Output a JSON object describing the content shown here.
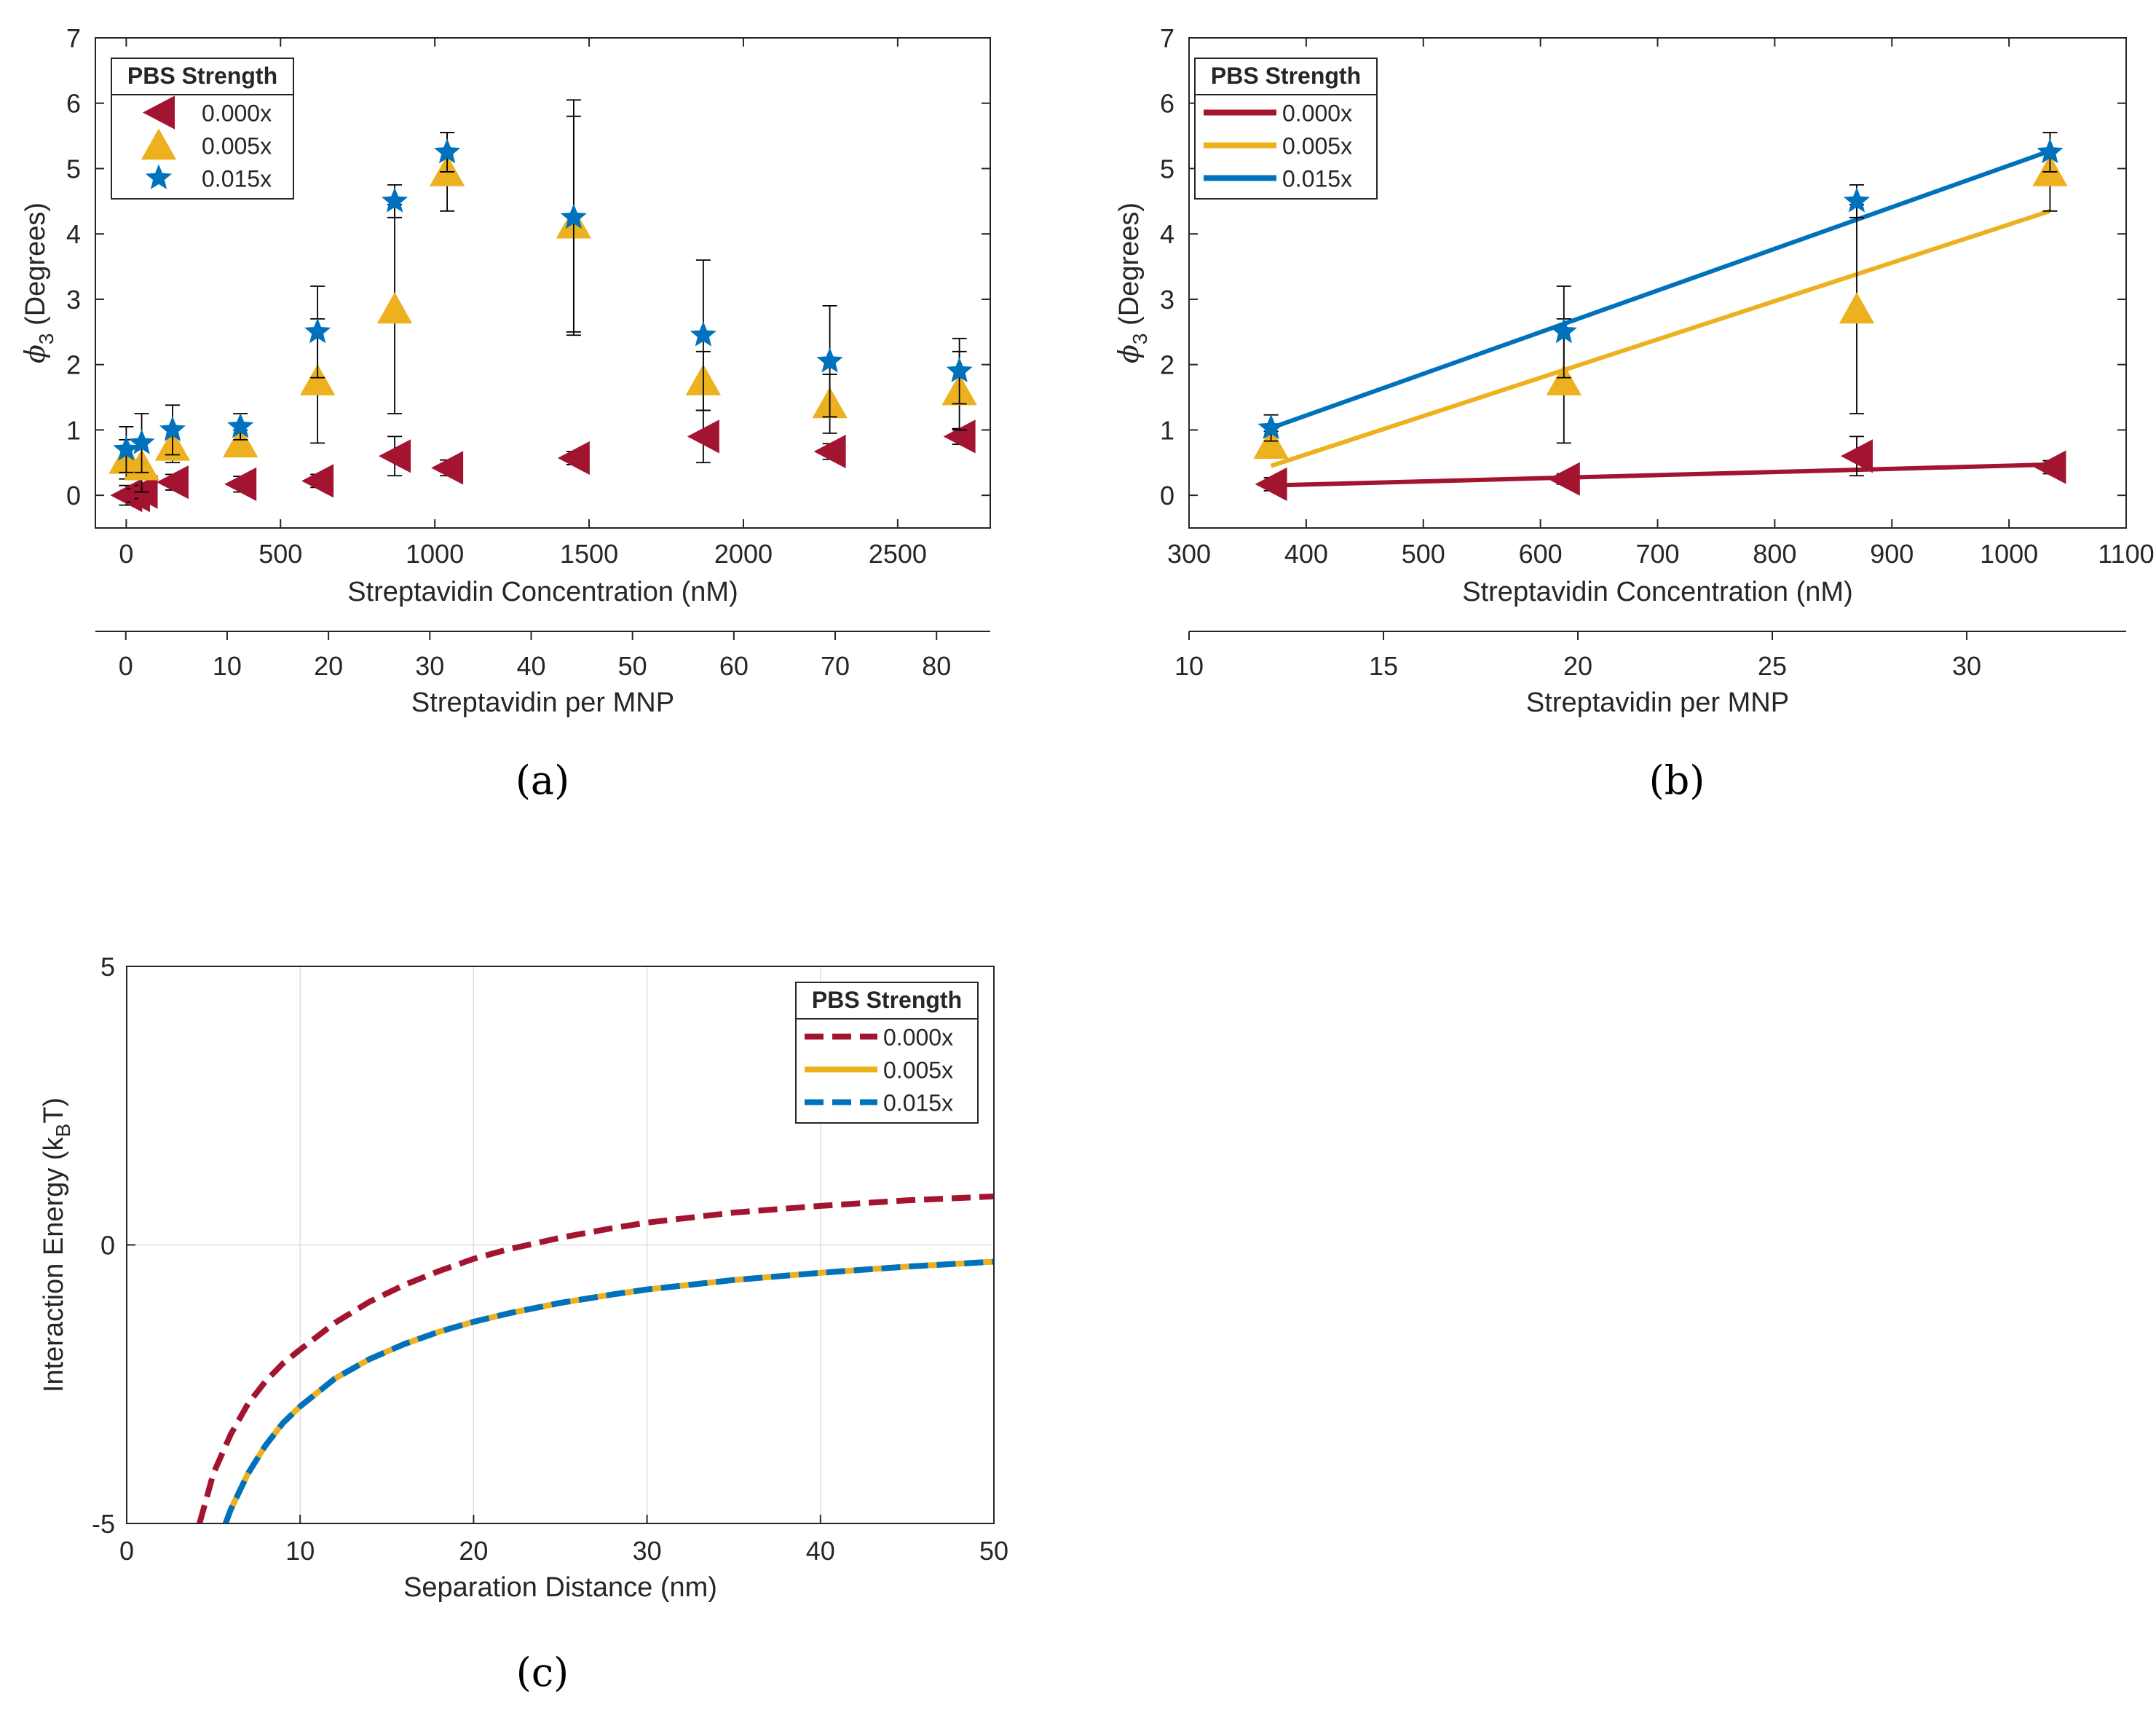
{
  "colors": {
    "red": "#A2142F",
    "yellow": "#EDB120",
    "blue": "#0072BD",
    "axis": "#262626",
    "grid": "#DFDFDF",
    "errorbar": "#000000"
  },
  "legend": {
    "title": "PBS Strength",
    "entries": [
      "0.000x",
      "0.005x",
      "0.015x"
    ]
  },
  "chart_data": [
    {
      "id": "a",
      "type": "scatter",
      "panel_label": "(a)",
      "ylabel": "ϕ₃ (Degrees)",
      "xlabel": "Streptavidin Concentration (nM)",
      "x2label": "Streptavidin per MNP",
      "xlim": [
        -100,
        2800
      ],
      "ylim": [
        -0.5,
        7
      ],
      "x2lim": [
        -3,
        85.3
      ],
      "xticks": [
        0,
        500,
        1000,
        1500,
        2000,
        2500
      ],
      "x2ticks": [
        0,
        10,
        20,
        30,
        40,
        50,
        60,
        70,
        80
      ],
      "yticks": [
        0,
        1,
        2,
        3,
        4,
        5,
        6,
        7
      ],
      "series": [
        {
          "name": "0.000x",
          "marker": "triangle-left",
          "color": "#A2142F",
          "x": [
            0,
            25,
            50,
            150,
            370,
            620,
            870,
            1040,
            1450,
            1870,
            2280,
            2700
          ],
          "y": [
            0.0,
            0.0,
            0.05,
            0.2,
            0.17,
            0.22,
            0.6,
            0.42,
            0.57,
            0.9,
            0.67,
            0.9
          ],
          "err": [
            0.15,
            0.1,
            0.1,
            0.12,
            0.12,
            0.1,
            0.3,
            0.12,
            0.1,
            0.4,
            0.12,
            0.12
          ]
        },
        {
          "name": "0.005x",
          "marker": "triangle-up",
          "color": "#EDB120",
          "x": [
            0,
            50,
            150,
            370,
            620,
            870,
            1040,
            1450,
            1870,
            2280,
            2700
          ],
          "y": [
            0.55,
            0.45,
            0.75,
            0.8,
            1.75,
            2.85,
            4.95,
            4.15,
            1.75,
            1.4,
            1.6
          ],
          "err": [
            0.3,
            0.4,
            0.25,
            0.2,
            0.95,
            1.6,
            0.6,
            1.65,
            0.45,
            0.45,
            0.6
          ]
        },
        {
          "name": "0.015x",
          "marker": "star",
          "color": "#0072BD",
          "x": [
            0,
            50,
            150,
            370,
            620,
            870,
            1040,
            1450,
            1870,
            2280,
            2700
          ],
          "y": [
            0.7,
            0.8,
            1.0,
            1.05,
            2.5,
            4.5,
            5.25,
            4.25,
            2.45,
            2.05,
            1.9
          ],
          "err": [
            0.35,
            0.45,
            0.38,
            0.2,
            0.7,
            0.25,
            0.3,
            1.8,
            1.15,
            0.85,
            0.5
          ]
        }
      ]
    },
    {
      "id": "b",
      "type": "scatter",
      "panel_label": "(b)",
      "ylabel": "ϕ₃ (Degrees)",
      "xlabel": "Streptavidin Concentration (nM)",
      "x2label": "Streptavidin per MNP",
      "xlim": [
        300,
        1100
      ],
      "ylim": [
        -0.5,
        7
      ],
      "x2lim": [
        10,
        34.1
      ],
      "xticks": [
        300,
        400,
        500,
        600,
        700,
        800,
        900,
        1000,
        1100
      ],
      "x2ticks": [
        10,
        15,
        20,
        25,
        30
      ],
      "yticks": [
        0,
        1,
        2,
        3,
        4,
        5,
        6,
        7
      ],
      "series": [
        {
          "name": "0.000x",
          "marker": "triangle-left",
          "color": "#A2142F",
          "x": [
            370,
            620,
            870,
            1035
          ],
          "y": [
            0.17,
            0.25,
            0.6,
            0.43
          ],
          "err": [
            0.1,
            0.08,
            0.3,
            0.1
          ],
          "fit": [
            [
              370,
              0.15
            ],
            [
              1035,
              0.47
            ]
          ]
        },
        {
          "name": "0.005x",
          "marker": "triangle-up",
          "color": "#EDB120",
          "x": [
            370,
            620,
            870,
            1035
          ],
          "y": [
            0.78,
            1.75,
            2.85,
            4.95
          ],
          "err": [
            0.2,
            0.95,
            1.6,
            0.6
          ],
          "fit": [
            [
              370,
              0.45
            ],
            [
              1035,
              4.35
            ]
          ]
        },
        {
          "name": "0.015x",
          "marker": "star",
          "color": "#0072BD",
          "x": [
            370,
            620,
            870,
            1035
          ],
          "y": [
            1.03,
            2.5,
            4.5,
            5.25
          ],
          "err": [
            0.2,
            0.7,
            0.25,
            0.3
          ],
          "fit": [
            [
              370,
              1.03
            ],
            [
              1035,
              5.27
            ]
          ]
        }
      ]
    },
    {
      "id": "c",
      "type": "line",
      "panel_label": "(c)",
      "ylabel": "Interaction Energy (k",
      "ylabel_sub": "B",
      "ylabel_end": "T)",
      "xlabel": "Separation Distance (nm)",
      "xlim": [
        0,
        50
      ],
      "ylim": [
        -5,
        5
      ],
      "xticks": [
        0,
        10,
        20,
        30,
        40,
        50
      ],
      "yticks": [
        -5,
        0,
        5
      ],
      "grid": true,
      "series": [
        {
          "name": "0.000x",
          "style": "dashed",
          "color": "#A2142F",
          "x": [
            4.2,
            5,
            6,
            7,
            8,
            9,
            10,
            12,
            14,
            16,
            18,
            20,
            22,
            25,
            28,
            30,
            35,
            40,
            45,
            50
          ],
          "y": [
            -5.0,
            -4.1,
            -3.4,
            -2.85,
            -2.45,
            -2.13,
            -1.88,
            -1.4,
            -1.02,
            -0.72,
            -0.47,
            -0.25,
            -0.08,
            0.13,
            0.3,
            0.4,
            0.58,
            0.7,
            0.8,
            0.87
          ]
        },
        {
          "name": "0.005x",
          "style": "solid",
          "color": "#EDB120",
          "x": [
            5.7,
            6,
            7,
            8,
            9,
            10,
            12,
            14,
            16,
            18,
            20,
            22,
            25,
            28,
            30,
            35,
            40,
            45,
            50
          ],
          "y": [
            -5.0,
            -4.75,
            -4.1,
            -3.6,
            -3.2,
            -2.9,
            -2.4,
            -2.05,
            -1.78,
            -1.56,
            -1.38,
            -1.23,
            -1.04,
            -0.89,
            -0.8,
            -0.63,
            -0.5,
            -0.39,
            -0.3
          ]
        },
        {
          "name": "0.015x",
          "style": "dashed",
          "color": "#0072BD",
          "x": [
            5.7,
            6,
            7,
            8,
            9,
            10,
            12,
            14,
            16,
            18,
            20,
            22,
            25,
            28,
            30,
            35,
            40,
            45,
            50
          ],
          "y": [
            -5.0,
            -4.75,
            -4.1,
            -3.6,
            -3.2,
            -2.9,
            -2.4,
            -2.05,
            -1.78,
            -1.56,
            -1.38,
            -1.23,
            -1.04,
            -0.89,
            -0.8,
            -0.63,
            -0.5,
            -0.39,
            -0.3
          ]
        }
      ]
    }
  ]
}
